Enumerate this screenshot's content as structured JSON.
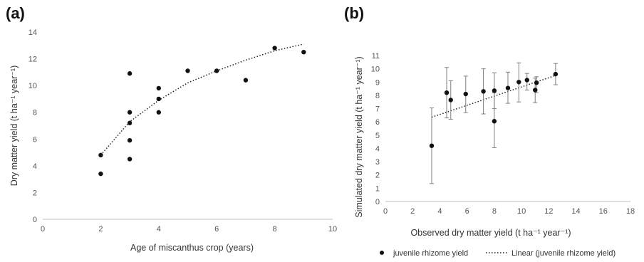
{
  "panels": {
    "a_label": "(a)",
    "b_label": "(b)"
  },
  "chart_data": [
    {
      "type": "scatter",
      "xlabel": "Age of miscanthus crop (years)",
      "ylabel": "Dry matter yield (t ha⁻¹ year⁻¹)",
      "xlim": [
        0,
        10
      ],
      "ylim": [
        0,
        14
      ],
      "xticks": [
        0,
        2,
        4,
        6,
        8,
        10
      ],
      "yticks": [
        0,
        2,
        4,
        6,
        8,
        10,
        12,
        14
      ],
      "grid": false,
      "series": [
        {
          "points": [
            [
              2,
              4.8
            ],
            [
              2,
              3.4
            ],
            [
              3,
              10.9
            ],
            [
              3,
              8.0
            ],
            [
              3,
              7.2
            ],
            [
              3,
              5.9
            ],
            [
              3,
              4.5
            ],
            [
              4,
              9.8
            ],
            [
              4,
              9.0
            ],
            [
              4,
              8.0
            ],
            [
              5,
              11.1
            ],
            [
              6,
              11.1
            ],
            [
              7,
              10.4
            ],
            [
              8,
              12.8
            ],
            [
              9,
              12.5
            ]
          ],
          "color": "#111111"
        }
      ],
      "trendline": {
        "style": "dotted",
        "x": [
          2,
          3,
          4,
          5,
          6,
          7,
          8,
          9
        ],
        "y": [
          4.8,
          7.3,
          8.9,
          10.2,
          11.1,
          11.9,
          12.6,
          13.1
        ]
      }
    },
    {
      "type": "scatter",
      "xlabel": "Observed dry matter yield (t ha⁻¹ year⁻¹)",
      "ylabel": "Simulated dry matter yield (t ha⁻¹ year⁻¹)",
      "xlim": [
        0,
        18
      ],
      "ylim": [
        0,
        11
      ],
      "xticks": [
        0,
        2,
        4,
        6,
        8,
        10,
        12,
        14,
        16,
        18
      ],
      "yticks": [
        0,
        1,
        2,
        3,
        4,
        5,
        6,
        7,
        8,
        9,
        10,
        11
      ],
      "grid": false,
      "legend_position": "bottom",
      "series": [
        {
          "name": "juvenile rhizome yield",
          "color": "#111111",
          "points": [
            {
              "x": 3.4,
              "y": 4.2,
              "lo": 1.35,
              "hi": 7.05
            },
            {
              "x": 4.5,
              "y": 8.2,
              "lo": 6.3,
              "hi": 10.1
            },
            {
              "x": 4.8,
              "y": 7.65,
              "lo": 6.2,
              "hi": 9.1
            },
            {
              "x": 5.9,
              "y": 8.1,
              "lo": 6.7,
              "hi": 9.45
            },
            {
              "x": 7.2,
              "y": 8.3,
              "lo": 6.6,
              "hi": 10.0
            },
            {
              "x": 8.0,
              "y": 6.05,
              "lo": 4.05,
              "hi": 8.2
            },
            {
              "x": 8.0,
              "y": 8.35,
              "lo": 7.0,
              "hi": 9.7
            },
            {
              "x": 9.0,
              "y": 8.55,
              "lo": 7.4,
              "hi": 9.75
            },
            {
              "x": 9.8,
              "y": 9.0,
              "lo": 7.5,
              "hi": 10.45
            },
            {
              "x": 10.4,
              "y": 9.15,
              "lo": 8.4,
              "hi": 9.65
            },
            {
              "x": 11.0,
              "y": 8.4,
              "lo": 7.45,
              "hi": 9.3
            },
            {
              "x": 11.1,
              "y": 8.95,
              "lo": 8.2,
              "hi": 9.4
            },
            {
              "x": 12.5,
              "y": 9.6,
              "lo": 8.8,
              "hi": 10.4
            }
          ]
        },
        {
          "name": "Linear (juvenile rhizome yield)",
          "style": "dotted",
          "x": [
            3.4,
            12.5
          ],
          "y": [
            6.35,
            9.5
          ]
        }
      ]
    }
  ]
}
